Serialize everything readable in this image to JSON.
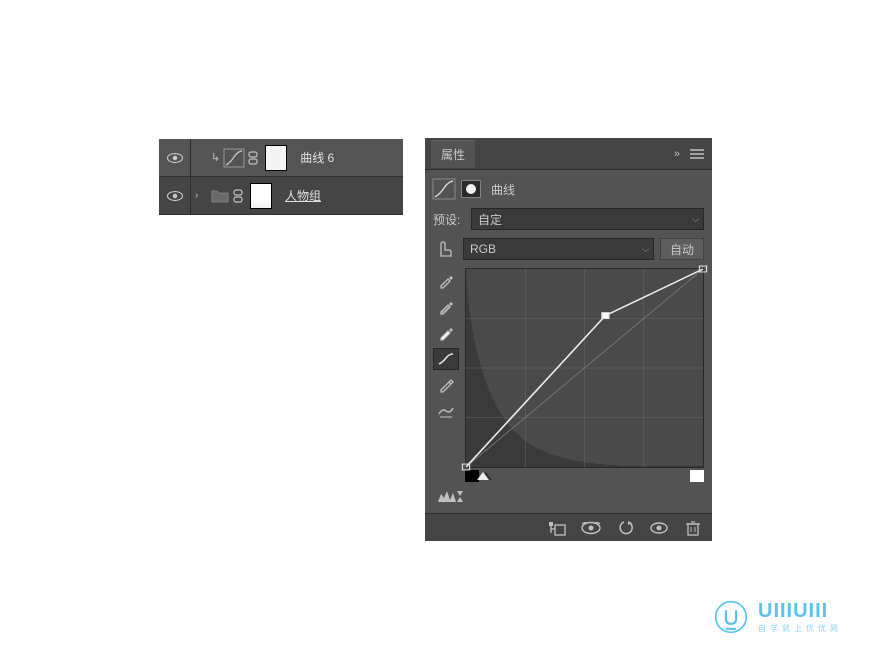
{
  "layers": {
    "rows": [
      {
        "name": "曲线 6",
        "type": "adjustment",
        "selected": true,
        "underline": false
      },
      {
        "name": "人物组",
        "type": "group",
        "selected": false,
        "underline": true
      }
    ]
  },
  "properties": {
    "tab_label": "属性",
    "layer_type_label": "曲线",
    "preset_label": "预设:",
    "preset_value": "自定",
    "channel_value": "RGB",
    "auto_label": "自动",
    "curve": {
      "type": "curve",
      "grid_divisions": 4,
      "xlim": [
        0,
        255
      ],
      "ylim": [
        0,
        255
      ],
      "points": [
        {
          "x": 0,
          "y": 0
        },
        {
          "x": 150,
          "y": 195
        },
        {
          "x": 255,
          "y": 255
        }
      ],
      "histogram_values": [
        185,
        168,
        155,
        146,
        138,
        131,
        125,
        119,
        114,
        109,
        104,
        100,
        96,
        92,
        88,
        85,
        82,
        79,
        76,
        73,
        70,
        68,
        65,
        63,
        61,
        58,
        56,
        54,
        52,
        50,
        49,
        47,
        45,
        44,
        42,
        41,
        39,
        38,
        37,
        35,
        34,
        33,
        32,
        31,
        30,
        29,
        28,
        27,
        26,
        25,
        24,
        23,
        22,
        22,
        21,
        20,
        20,
        19,
        18,
        18,
        17,
        17,
        16,
        16,
        15,
        15,
        14,
        14,
        13,
        13,
        12,
        12,
        12,
        11,
        11,
        11,
        10,
        10,
        10,
        9,
        9,
        9,
        8,
        8,
        8,
        8,
        7,
        7,
        7,
        7,
        6,
        6,
        6,
        6,
        6,
        5,
        5,
        5,
        5,
        5,
        5,
        4,
        4,
        4,
        4,
        4,
        4,
        4,
        3,
        3,
        3,
        3,
        3,
        3,
        3,
        3,
        3,
        2,
        2,
        2,
        2,
        2,
        2,
        2,
        2,
        2,
        2,
        2,
        1,
        1,
        1,
        1,
        1,
        1,
        1,
        1,
        1,
        1,
        1,
        1,
        1,
        1,
        1,
        1,
        1,
        1,
        1,
        1,
        1,
        1,
        1,
        1,
        1,
        1,
        1,
        1,
        1,
        1,
        1,
        1,
        1,
        1,
        1,
        1,
        1,
        1,
        1,
        1,
        1,
        1,
        1,
        1,
        1,
        1,
        1,
        1,
        1,
        1,
        1,
        1,
        1,
        1,
        1,
        1,
        1,
        1,
        1,
        1,
        1,
        1,
        1,
        1,
        1,
        1,
        1,
        1,
        1,
        1,
        1,
        2
      ],
      "colors": {
        "grid_bg": "#4a4a4a",
        "grid_line": "#666666",
        "diagonal": "#7a7a7a",
        "curve_line": "#e8e8e8",
        "point_fill": "#ffffff",
        "histogram": "#3a3a3a"
      }
    }
  },
  "watermark": {
    "title": "UIIIUIII",
    "subtitle": "自学就上优优网"
  }
}
